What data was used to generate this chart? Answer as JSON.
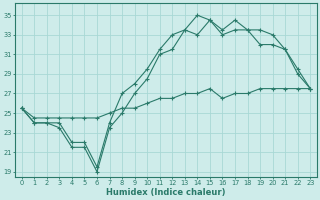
{
  "xlabel": "Humidex (Indice chaleur)",
  "xlim": [
    -0.5,
    23.5
  ],
  "ylim": [
    18.5,
    36.2
  ],
  "xticks": [
    0,
    1,
    2,
    3,
    4,
    5,
    6,
    7,
    8,
    9,
    10,
    11,
    12,
    13,
    14,
    15,
    16,
    17,
    18,
    19,
    20,
    21,
    22,
    23
  ],
  "yticks": [
    19,
    21,
    23,
    25,
    27,
    29,
    31,
    33,
    35
  ],
  "line_color": "#2a7a6a",
  "bg_color": "#ceecea",
  "grid_color": "#a8d8d5",
  "line1_x": [
    0,
    1,
    2,
    3,
    4,
    5,
    6,
    7,
    8,
    9,
    10,
    11,
    12,
    13,
    14,
    15,
    16,
    17,
    18,
    19,
    20,
    21,
    22,
    23
  ],
  "line1_y": [
    25.5,
    24.0,
    24.0,
    23.5,
    21.5,
    21.5,
    19.0,
    23.5,
    25.0,
    27.0,
    28.5,
    31.0,
    31.5,
    33.5,
    33.0,
    34.5,
    33.5,
    34.5,
    33.5,
    33.5,
    33.0,
    31.5,
    29.0,
    27.5
  ],
  "line2_x": [
    0,
    1,
    2,
    3,
    4,
    5,
    6,
    7,
    8,
    9,
    10,
    11,
    12,
    13,
    14,
    15,
    16,
    17,
    18,
    19,
    20,
    21,
    22,
    23
  ],
  "line2_y": [
    25.5,
    24.0,
    24.0,
    24.0,
    22.0,
    22.0,
    19.5,
    24.0,
    27.0,
    28.0,
    29.5,
    31.5,
    33.0,
    33.5,
    35.0,
    34.5,
    33.0,
    33.5,
    33.5,
    32.0,
    32.0,
    31.5,
    29.5,
    27.5
  ],
  "line3_x": [
    0,
    1,
    2,
    3,
    4,
    5,
    6,
    7,
    8,
    9,
    10,
    11,
    12,
    13,
    14,
    15,
    16,
    17,
    18,
    19,
    20,
    21,
    22,
    23
  ],
  "line3_y": [
    25.5,
    24.5,
    24.5,
    24.5,
    24.5,
    24.5,
    24.5,
    25.0,
    25.5,
    25.5,
    26.0,
    26.5,
    26.5,
    27.0,
    27.0,
    27.5,
    26.5,
    27.0,
    27.0,
    27.5,
    27.5,
    27.5,
    27.5,
    27.5
  ]
}
